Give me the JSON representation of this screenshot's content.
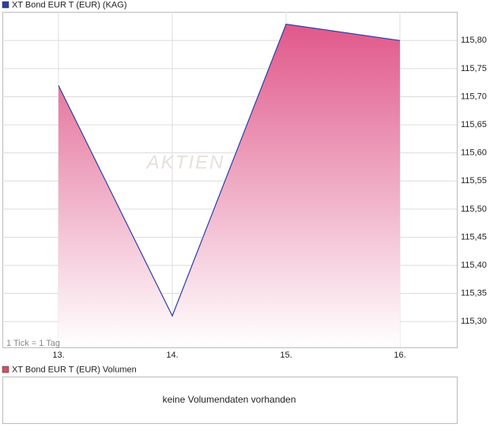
{
  "chart_data": {
    "type": "area",
    "title": "XT Bond EUR T (EUR) (KAG)",
    "tick_note": "1 Tick = 1 Tag",
    "watermark": "AKTIEN",
    "categories": [
      "13.",
      "14.",
      "15.",
      "16."
    ],
    "series": [
      {
        "name": "XT Bond EUR T (EUR) (KAG)",
        "color": "#2b3fa3",
        "values": [
          115.72,
          115.31,
          115.829,
          115.8
        ]
      }
    ],
    "fill_color": "#e0588a",
    "ylim": [
      115.254,
      115.851
    ],
    "yticks": [
      {
        "value": 115.3,
        "label": "115,30"
      },
      {
        "value": 115.35,
        "label": "115,35"
      },
      {
        "value": 115.4,
        "label": "115,40"
      },
      {
        "value": 115.45,
        "label": "115,45"
      },
      {
        "value": 115.5,
        "label": "115,50"
      },
      {
        "value": 115.55,
        "label": "115,55"
      },
      {
        "value": 115.6,
        "label": "115,60"
      },
      {
        "value": 115.65,
        "label": "115,65"
      },
      {
        "value": 115.7,
        "label": "115,70"
      },
      {
        "value": 115.75,
        "label": "115,75"
      },
      {
        "value": 115.8,
        "label": "115,80"
      }
    ],
    "grid": true,
    "volume": {
      "title": "XT Bond EUR T (EUR) Volumen",
      "color": "#d0505f",
      "message": "keine Volumendaten vorhanden"
    }
  }
}
